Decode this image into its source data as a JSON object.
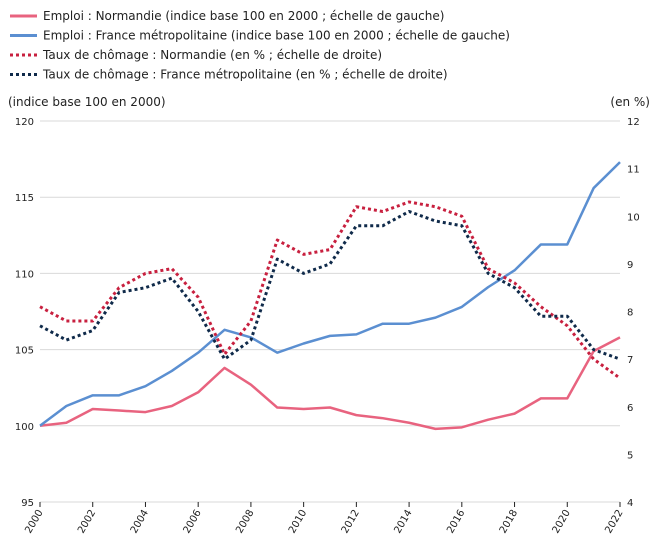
{
  "chart_data": {
    "type": "line",
    "title": "",
    "left_axis_label": "(indice base 100 en 2000)",
    "right_axis_label": "(en %)",
    "x": [
      2000,
      2001,
      2002,
      2003,
      2004,
      2005,
      2006,
      2007,
      2008,
      2009,
      2010,
      2011,
      2012,
      2013,
      2014,
      2015,
      2016,
      2017,
      2018,
      2019,
      2020,
      2021,
      2022
    ],
    "x_ticks": [
      "2000",
      "2002",
      "2004",
      "2006",
      "2008",
      "2010",
      "2012",
      "2014",
      "2016",
      "2018",
      "2020",
      "2022"
    ],
    "y_left_lim": [
      95,
      120
    ],
    "y_left_ticks": [
      "95",
      "100",
      "105",
      "110",
      "115",
      "120"
    ],
    "y_right_lim": [
      4,
      12
    ],
    "y_right_ticks": [
      "4",
      "5",
      "6",
      "7",
      "8",
      "9",
      "10",
      "11",
      "12"
    ],
    "grid": "horizontal",
    "legend_position": "top-left",
    "series": [
      {
        "name": "Emploi : Normandie (indice base 100 en 2000 ; échelle de gauche)",
        "axis": "left",
        "style": "solid",
        "color": "#e8637f",
        "values": [
          100.0,
          100.2,
          101.1,
          101.0,
          100.9,
          101.3,
          102.2,
          103.8,
          102.7,
          101.2,
          101.1,
          101.2,
          100.7,
          100.5,
          100.2,
          99.8,
          99.9,
          100.4,
          100.8,
          101.8,
          101.8,
          104.9,
          105.8
        ]
      },
      {
        "name": "Emploi : France métropolitaine (indice base 100 en 2000 ; échelle de gauche)",
        "axis": "left",
        "style": "solid",
        "color": "#5b8fd1",
        "values": [
          100.0,
          101.3,
          102.0,
          102.0,
          102.6,
          103.6,
          104.8,
          106.3,
          105.8,
          104.8,
          105.4,
          105.9,
          106.0,
          106.7,
          106.7,
          107.1,
          107.8,
          109.1,
          110.2,
          111.9,
          111.9,
          115.6,
          117.3
        ]
      },
      {
        "name": "Taux de chômage : Normandie (en % ; échelle de droite)",
        "axis": "right",
        "style": "dotted",
        "color": "#c8203f",
        "values": [
          8.1,
          7.8,
          7.8,
          8.5,
          8.8,
          8.9,
          8.3,
          7.1,
          7.8,
          9.5,
          9.2,
          9.3,
          10.2,
          10.1,
          10.3,
          10.2,
          10.0,
          8.9,
          8.6,
          8.1,
          7.7,
          7.0,
          6.6
        ]
      },
      {
        "name": "Taux de chômage : France métropolitaine (en % ; échelle de droite)",
        "axis": "right",
        "style": "dotted",
        "color": "#0f2a4a",
        "values": [
          7.7,
          7.4,
          7.6,
          8.4,
          8.5,
          8.7,
          8.0,
          7.0,
          7.4,
          9.1,
          8.8,
          9.0,
          9.8,
          9.8,
          10.1,
          9.9,
          9.8,
          8.8,
          8.5,
          7.9,
          7.9,
          7.2,
          7.0
        ]
      }
    ]
  }
}
